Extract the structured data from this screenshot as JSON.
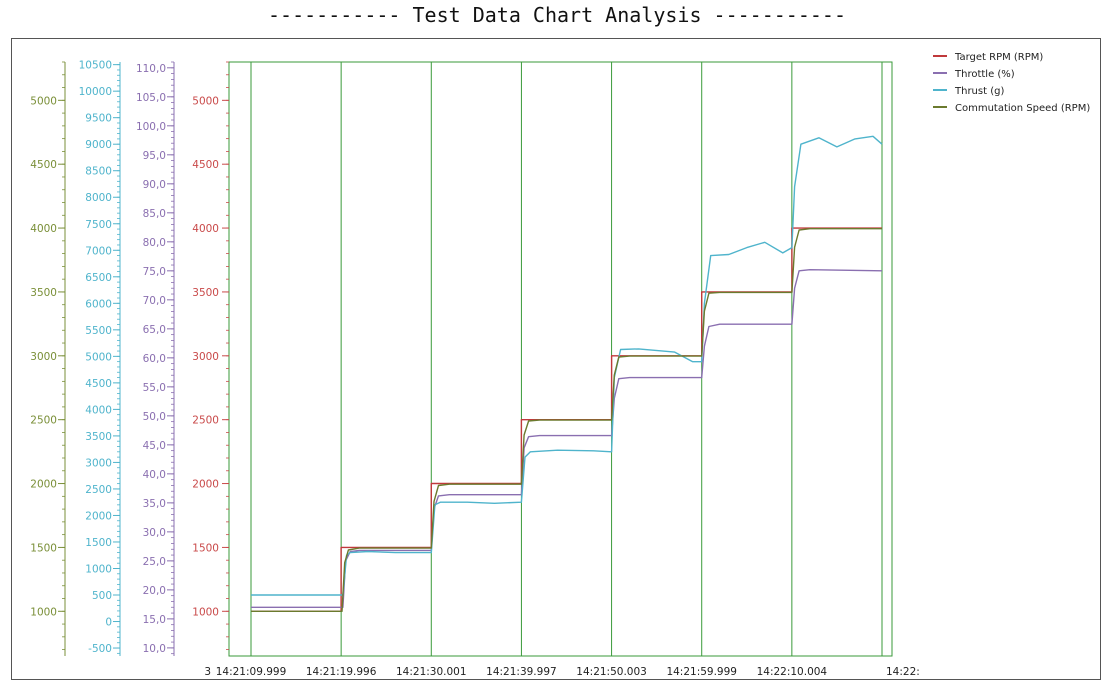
{
  "title": "----------- Test Data Chart Analysis -----------",
  "chart_data": {
    "type": "line",
    "grid": "vertical",
    "legend_position": "top-right",
    "x_tick_labels": [
      "3",
      "14:21:09.999",
      "14:21:19.996",
      "14:21:30.001",
      "14:21:39.997",
      "14:21:50.003",
      "14:21:59.999",
      "14:22:10.004",
      "14:22:"
    ],
    "x_range": [
      0,
      70
    ],
    "axes": [
      {
        "id": "rpm_outer",
        "color": "#7a8f38",
        "range": [
          650,
          5300
        ],
        "ticks": [
          1000,
          1500,
          2000,
          2500,
          3000,
          3500,
          4000,
          4500,
          5000
        ],
        "tick_labels": [
          "1000",
          "1500",
          "2000",
          "2500",
          "3000",
          "3500",
          "4000",
          "4500",
          "5000"
        ]
      },
      {
        "id": "thrust",
        "color": "#4fb4cc",
        "range": [
          -650,
          10550
        ],
        "ticks": [
          -500,
          0,
          500,
          1000,
          1500,
          2000,
          2500,
          3000,
          3500,
          4000,
          4500,
          5000,
          5500,
          6000,
          6500,
          7000,
          7500,
          8000,
          8500,
          9000,
          9500,
          10000,
          10500
        ],
        "tick_labels": [
          "-500",
          "0",
          "500",
          "1000",
          "1500",
          "2000",
          "2500",
          "3000",
          "3500",
          "4000",
          "4500",
          "5000",
          "5500",
          "6000",
          "6500",
          "7000",
          "7500",
          "8000",
          "8500",
          "9000",
          "9500",
          "10000",
          "10500"
        ]
      },
      {
        "id": "throttle",
        "color": "#8a6fb0",
        "range": [
          8.6,
          111
        ],
        "ticks": [
          10,
          15,
          20,
          25,
          30,
          35,
          40,
          45,
          50,
          55,
          60,
          65,
          70,
          75,
          80,
          85,
          90,
          95,
          100,
          105,
          110
        ],
        "tick_labels": [
          "10,0",
          "15,0",
          "20,0",
          "25,0",
          "30,0",
          "35,0",
          "40,0",
          "45,0",
          "50,0",
          "55,0",
          "60,0",
          "65,0",
          "70,0",
          "75,0",
          "80,0",
          "85,0",
          "90,0",
          "95,0",
          "100,0",
          "105,0",
          "110,0"
        ]
      },
      {
        "id": "rpm_inner",
        "color": "#c94a4a",
        "range": [
          650,
          5300
        ],
        "ticks": [
          1000,
          1500,
          2000,
          2500,
          3000,
          3500,
          4000,
          4500,
          5000
        ],
        "tick_labels": [
          "1000",
          "1500",
          "2000",
          "2500",
          "3000",
          "3500",
          "4000",
          "4500",
          "5000"
        ]
      }
    ],
    "series": [
      {
        "name": "Target RPM (RPM)",
        "color": "#c0393b",
        "axis": "rpm_inner",
        "x": [
          0,
          10,
          10,
          20,
          20,
          30,
          30,
          40,
          40,
          50,
          50,
          60,
          60,
          70
        ],
        "y": [
          1000,
          1000,
          1500,
          1500,
          2000,
          2000,
          2500,
          2500,
          3000,
          3000,
          3500,
          3500,
          4000,
          4000
        ]
      },
      {
        "name": "Throttle (%)",
        "color": "#8a6fb0",
        "axis": "throttle",
        "x": [
          0,
          10.2,
          10.5,
          11,
          12,
          20,
          20.3,
          20.8,
          22,
          30,
          30.3,
          30.8,
          32,
          40,
          40.3,
          40.8,
          42,
          50,
          50.3,
          50.8,
          52,
          60,
          60.3,
          60.8,
          62,
          70
        ],
        "y": [
          17,
          17,
          25,
          26.6,
          26.8,
          26.8,
          34,
          36.2,
          36.4,
          36.4,
          44.5,
          46.4,
          46.6,
          46.6,
          53,
          56.4,
          56.6,
          56.6,
          62,
          65.4,
          65.8,
          65.8,
          72,
          75,
          75.2,
          75
        ]
      },
      {
        "name": "Thrust (g)",
        "color": "#4fb4cc",
        "axis": "thrust",
        "x": [
          0,
          10.2,
          10.6,
          11,
          13,
          16,
          20,
          20.4,
          21,
          24,
          27,
          30,
          30.4,
          31,
          34,
          38,
          40,
          40.3,
          41,
          43,
          47,
          49,
          50,
          50.3,
          51,
          53,
          55,
          57,
          59,
          60,
          60.3,
          61,
          63,
          65,
          67,
          69,
          70
        ],
        "y": [
          500,
          500,
          1250,
          1300,
          1320,
          1300,
          1300,
          2200,
          2250,
          2250,
          2230,
          2250,
          3100,
          3200,
          3230,
          3220,
          3200,
          4600,
          5130,
          5140,
          5080,
          4900,
          4900,
          6000,
          6900,
          6920,
          7050,
          7150,
          6950,
          7050,
          8200,
          9000,
          9120,
          8950,
          9100,
          9150,
          9000
        ]
      },
      {
        "name": "Commutation Speed (RPM)",
        "color": "#6b7a2e",
        "axis": "rpm_inner",
        "x": [
          0,
          10.1,
          10.4,
          10.8,
          12,
          20,
          20.3,
          20.8,
          22,
          30,
          30.3,
          30.8,
          32,
          40,
          40.3,
          40.8,
          42,
          50,
          50.3,
          50.8,
          52,
          60,
          60.3,
          60.8,
          62,
          70
        ],
        "y": [
          1000,
          1000,
          1380,
          1480,
          1495,
          1495,
          1860,
          1985,
          1995,
          1995,
          2380,
          2490,
          2497,
          2497,
          2850,
          2990,
          2998,
          2998,
          3350,
          3490,
          3496,
          3496,
          3850,
          3985,
          3995,
          3995
        ]
      }
    ]
  }
}
